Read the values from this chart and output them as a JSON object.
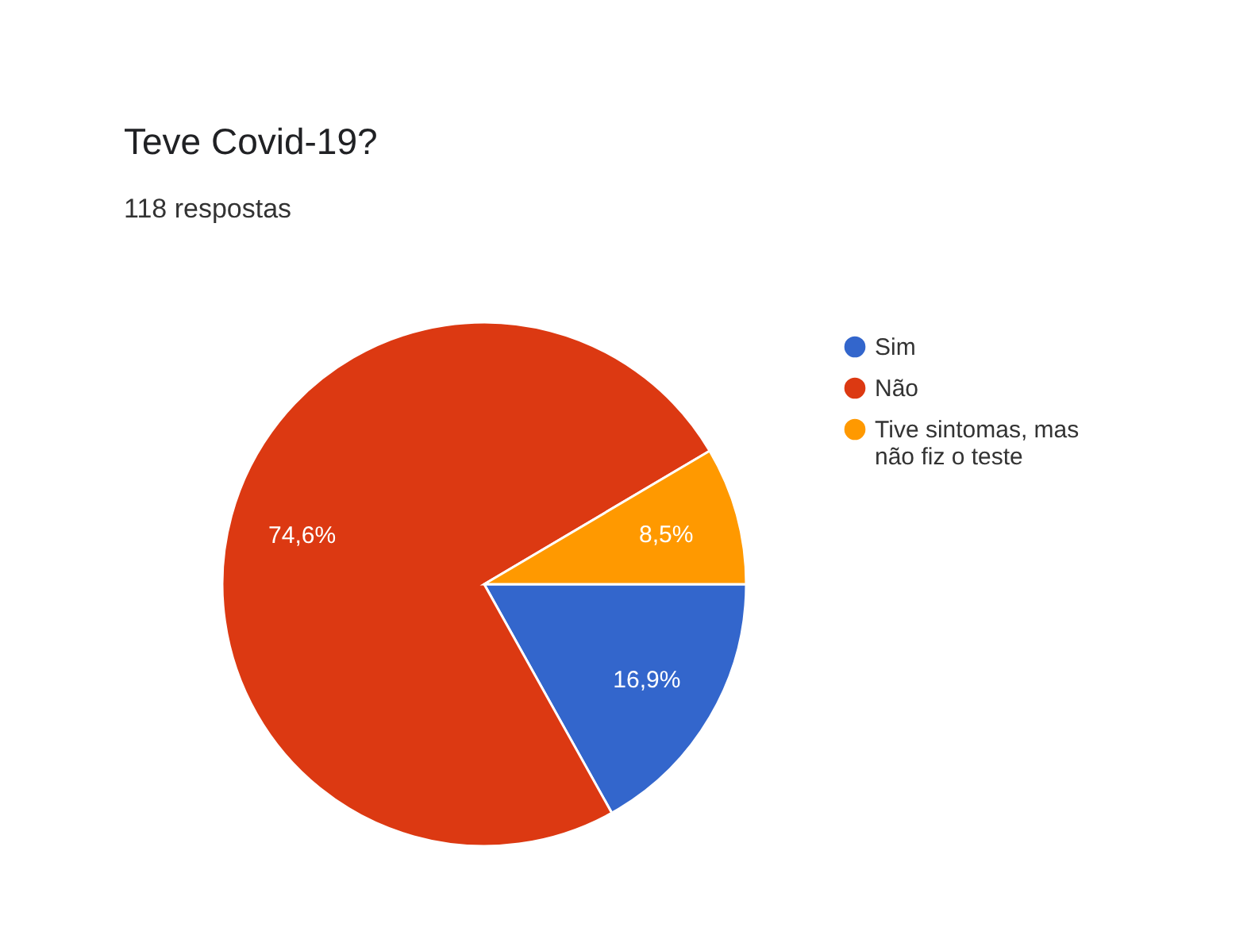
{
  "chart_data": {
    "type": "pie",
    "title": "Teve Covid-19?",
    "subtitle": "118 respostas",
    "categories": [
      "Sim",
      "Não",
      "Tive sintomas, mas não fiz o teste"
    ],
    "values": [
      16.9,
      74.6,
      8.5
    ],
    "colors": [
      "#3366cc",
      "#dc3912",
      "#ff9900"
    ],
    "value_labels": [
      "16,9%",
      "74,6%",
      "8,5%"
    ],
    "legend": "right"
  }
}
